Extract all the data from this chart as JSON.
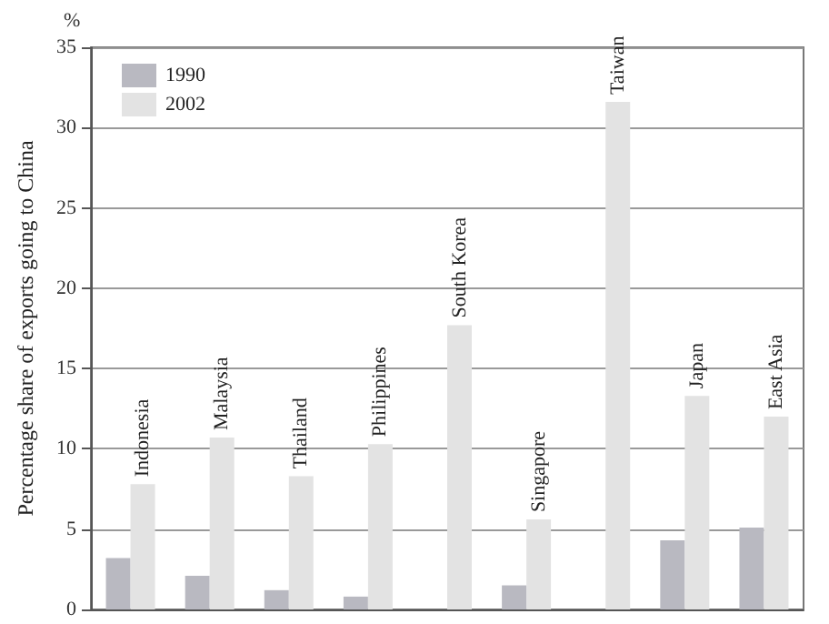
{
  "chart_data": {
    "type": "bar",
    "ylabel": "Percentage share of exports going to China",
    "annotations": [
      "%"
    ],
    "categories": [
      "Indonesia",
      "Malaysia",
      "Thailand",
      "Philippines",
      "South Korea",
      "Singapore",
      "Taiwan",
      "Japan",
      "East Asia"
    ],
    "series": [
      {
        "name": "1990",
        "color": "#b9b9c1",
        "values": [
          3.2,
          2.1,
          1.2,
          0.8,
          null,
          1.5,
          null,
          4.3,
          5.1
        ]
      },
      {
        "name": "2002",
        "color": "#e3e3e3",
        "values": [
          7.8,
          10.7,
          8.3,
          10.3,
          17.7,
          5.6,
          31.6,
          13.3,
          12.0
        ]
      }
    ],
    "ylim": [
      0,
      35
    ],
    "yticks": [
      0,
      5,
      10,
      15,
      20,
      25,
      30,
      35
    ],
    "grid": "y",
    "legend": "top left"
  }
}
